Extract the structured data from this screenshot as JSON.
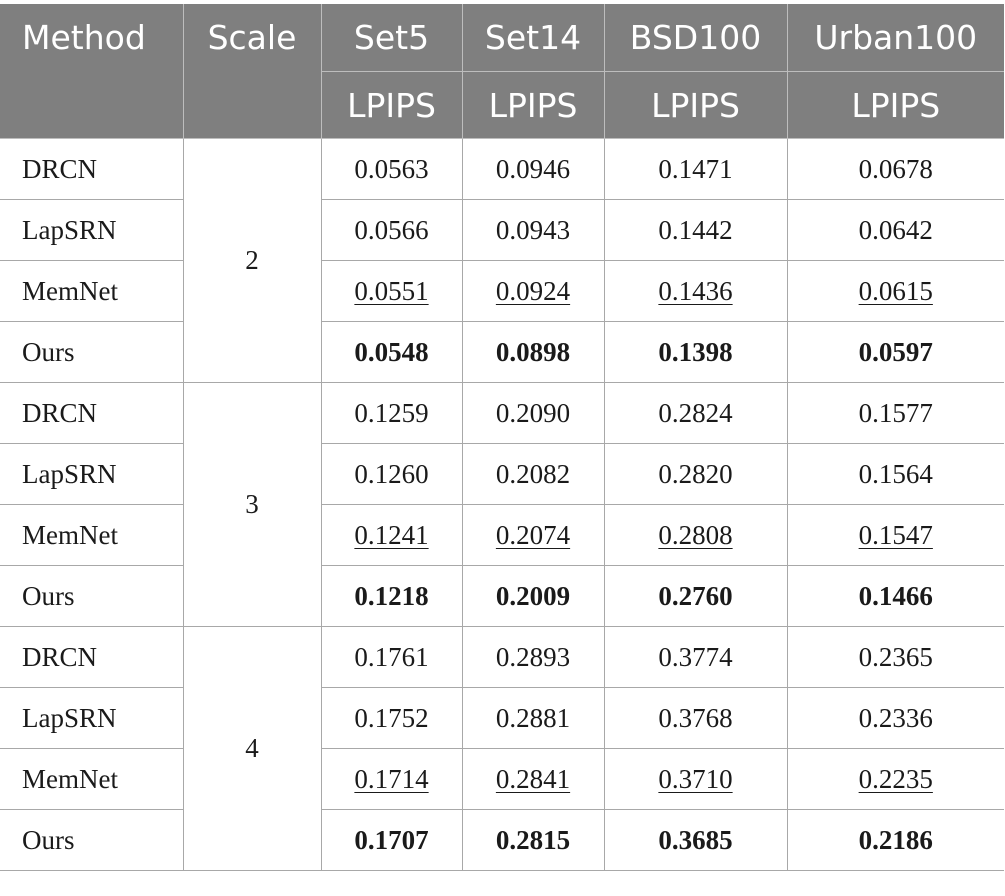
{
  "header": {
    "method": "Method",
    "scale": "Scale",
    "datasets": [
      "Set5",
      "Set14",
      "BSD100",
      "Urban100"
    ],
    "metric": "LPIPS"
  },
  "groups": [
    {
      "scale": "2",
      "rows": [
        {
          "method": "DRCN",
          "values": [
            "0.0563",
            "0.0946",
            "0.1471",
            "0.0678"
          ]
        },
        {
          "method": "LapSRN",
          "values": [
            "0.0566",
            "0.0943",
            "0.1442",
            "0.0642"
          ]
        },
        {
          "method": "MemNet",
          "values": [
            "0.0551",
            "0.0924",
            "0.1436",
            "0.0615"
          ]
        },
        {
          "method": "Ours",
          "values": [
            "0.0548",
            "0.0898",
            "0.1398",
            "0.0597"
          ]
        }
      ]
    },
    {
      "scale": "3",
      "rows": [
        {
          "method": "DRCN",
          "values": [
            "0.1259",
            "0.2090",
            "0.2824",
            "0.1577"
          ]
        },
        {
          "method": "LapSRN",
          "values": [
            "0.1260",
            "0.2082",
            "0.2820",
            "0.1564"
          ]
        },
        {
          "method": "MemNet",
          "values": [
            "0.1241",
            "0.2074",
            "0.2808",
            "0.1547"
          ]
        },
        {
          "method": "Ours",
          "values": [
            "0.1218",
            "0.2009",
            "0.2760",
            "0.1466"
          ]
        }
      ]
    },
    {
      "scale": "4",
      "rows": [
        {
          "method": "DRCN",
          "values": [
            "0.1761",
            "0.2893",
            "0.3774",
            "0.2365"
          ]
        },
        {
          "method": "LapSRN",
          "values": [
            "0.1752",
            "0.2881",
            "0.3768",
            "0.2336"
          ]
        },
        {
          "method": "MemNet",
          "values": [
            "0.1714",
            "0.2841",
            "0.3710",
            "0.2235"
          ]
        },
        {
          "method": "Ours",
          "values": [
            "0.1707",
            "0.2815",
            "0.3685",
            "0.2186"
          ]
        }
      ]
    }
  ]
}
